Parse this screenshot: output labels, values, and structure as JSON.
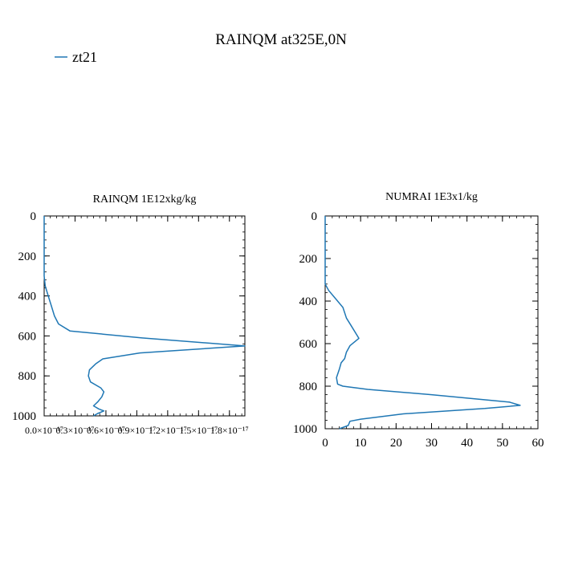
{
  "figure": {
    "title": "RAINQM at325E,0N",
    "legend": {
      "label": "zt21",
      "color": "#1f77b4",
      "placement": "top-left"
    }
  },
  "chart_data": [
    {
      "type": "line",
      "title": "RAINQM  1E12xkg/kg",
      "xlabel": "",
      "ylabel": "",
      "xlim": [
        0,
        1.95e-17
      ],
      "ylim": [
        1000,
        0
      ],
      "x_ticks": [
        0,
        3e-18,
        6e-18,
        9e-18,
        1.2e-17,
        1.5e-17,
        1.8e-17
      ],
      "x_tick_labels": [
        "0.0×10⁻¹⁷",
        "0.3×10⁻¹⁷",
        "0.6×10⁻¹⁷",
        "0.9×10⁻¹⁷",
        "1.2×10⁻¹⁷",
        "1.5×10⁻¹⁷",
        "1.8×10⁻¹⁷"
      ],
      "y_ticks": [
        0,
        200,
        400,
        600,
        800,
        1000
      ],
      "y_tick_labels": [
        "0",
        "200",
        "400",
        "600",
        "800",
        "1000"
      ],
      "grid": false,
      "series": [
        {
          "name": "zt21",
          "color": "#1f77b4",
          "points": [
            [
              0,
              0
            ],
            [
              0,
              300
            ],
            [
              1e-19,
              350
            ],
            [
              4e-19,
              400
            ],
            [
              7e-19,
              450
            ],
            [
              1e-18,
              500
            ],
            [
              1.4e-18,
              540
            ],
            [
              2.5e-18,
              575
            ],
            [
              9.5e-18,
              610
            ],
            [
              1.95e-17,
              650
            ],
            [
              9.3e-18,
              685
            ],
            [
              5.7e-18,
              715
            ],
            [
              5e-18,
              740
            ],
            [
              4.4e-18,
              770
            ],
            [
              4.3e-18,
              800
            ],
            [
              4.5e-18,
              830
            ],
            [
              5.5e-18,
              860
            ],
            [
              5.8e-18,
              880
            ],
            [
              5.6e-18,
              905
            ],
            [
              5.2e-18,
              930
            ],
            [
              4.8e-18,
              950
            ],
            [
              5.3e-18,
              965
            ],
            [
              5.8e-18,
              975
            ],
            [
              5.2e-18,
              988
            ],
            [
              4.8e-18,
              1000
            ]
          ]
        }
      ]
    },
    {
      "type": "line",
      "title": "NUMRAI  1E3x1/kg",
      "xlabel": "",
      "ylabel": "",
      "xlim": [
        0,
        60
      ],
      "ylim": [
        1000,
        0
      ],
      "x_ticks": [
        0,
        10,
        20,
        30,
        40,
        50,
        60
      ],
      "x_tick_labels": [
        "0",
        "10",
        "20",
        "30",
        "40",
        "50",
        "60"
      ],
      "y_ticks": [
        0,
        200,
        400,
        600,
        800,
        1000
      ],
      "y_tick_labels": [
        "0",
        "200",
        "400",
        "600",
        "800",
        "1000"
      ],
      "grid": false,
      "series": [
        {
          "name": "zt21",
          "color": "#1f77b4",
          "points": [
            [
              0,
              0
            ],
            [
              0,
              320
            ],
            [
              1,
              350
            ],
            [
              3,
              390
            ],
            [
              5,
              430
            ],
            [
              6,
              480
            ],
            [
              7.5,
              520
            ],
            [
              9.5,
              575
            ],
            [
              7,
              610
            ],
            [
              6,
              640
            ],
            [
              5.5,
              670
            ],
            [
              4.5,
              690
            ],
            [
              4,
              720
            ],
            [
              3.2,
              760
            ],
            [
              3.5,
              790
            ],
            [
              5,
              800
            ],
            [
              12,
              815
            ],
            [
              30,
              840
            ],
            [
              52,
              875
            ],
            [
              55,
              890
            ],
            [
              45,
              905
            ],
            [
              22,
              930
            ],
            [
              10,
              955
            ],
            [
              7,
              965
            ],
            [
              6.5,
              985
            ],
            [
              4,
              1000
            ]
          ]
        }
      ]
    }
  ]
}
